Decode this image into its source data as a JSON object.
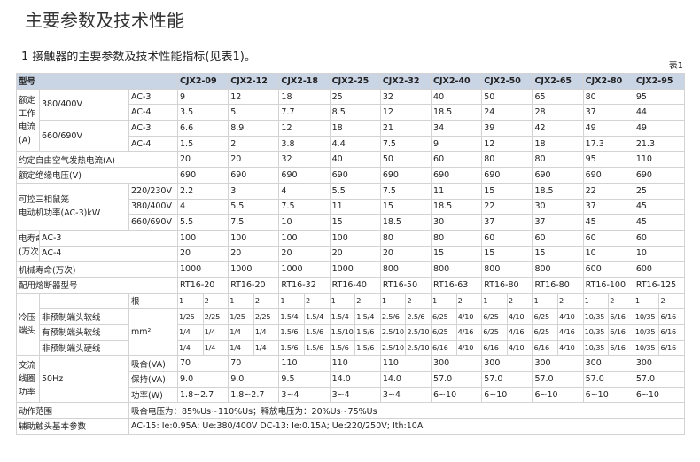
{
  "header": {
    "title": "主要参数及技术性能",
    "subtitle": "1 接触器的主要参数及技术性能指标(见表1)。"
  },
  "table": {
    "caption": "表1",
    "model_label": "型号",
    "models": [
      "CJX2-09",
      "CJX2-12",
      "CJX2-18",
      "CJX2-25",
      "CJX2-32",
      "CJX2-40",
      "CJX2-50",
      "CJX2-65",
      "CJX2-80",
      "CJX2-95"
    ],
    "rated_current": {
      "label_lines": [
        "额定",
        "工作",
        "电流",
        "(A)"
      ],
      "groups": [
        {
          "voltage": "380/400V",
          "rows": [
            {
              "category": "AC-3",
              "values": [
                "9",
                "12",
                "18",
                "25",
                "32",
                "40",
                "50",
                "65",
                "80",
                "95"
              ]
            },
            {
              "category": "AC-4",
              "values": [
                "3.5",
                "5",
                "7.7",
                "8.5",
                "12",
                "18.5",
                "24",
                "28",
                "37",
                "44"
              ]
            }
          ]
        },
        {
          "voltage": "660/690V",
          "rows": [
            {
              "category": "AC-3",
              "values": [
                "6.6",
                "8.9",
                "12",
                "18",
                "21",
                "34",
                "39",
                "42",
                "49",
                "49"
              ]
            },
            {
              "category": "AC-4",
              "values": [
                "1.5",
                "2",
                "3.8",
                "4.4",
                "7.5",
                "9",
                "12",
                "18",
                "17.3",
                "21.3"
              ]
            }
          ]
        }
      ]
    },
    "thermal_current": {
      "label": "约定自由空气发热电流(A)",
      "values": [
        "20",
        "20",
        "32",
        "40",
        "50",
        "60",
        "80",
        "80",
        "95",
        "110"
      ]
    },
    "insulation_voltage": {
      "label": "额定绝缘电压(V)",
      "values": [
        "690",
        "690",
        "690",
        "690",
        "690",
        "690",
        "690",
        "690",
        "690",
        "690"
      ]
    },
    "motor_power": {
      "label_lines": [
        "可控三相鼠笼",
        "电动机功率(AC-3)kW"
      ],
      "rows": [
        {
          "voltage": "220/230V",
          "values": [
            "2.2",
            "3",
            "4",
            "5.5",
            "7.5",
            "11",
            "15",
            "18.5",
            "22",
            "25"
          ]
        },
        {
          "voltage": "380/400V",
          "values": [
            "4",
            "5.5",
            "7.5",
            "11",
            "15",
            "18.5",
            "22",
            "30",
            "37",
            "45"
          ]
        },
        {
          "voltage": "660/690V",
          "values": [
            "5.5",
            "7.5",
            "10",
            "15",
            "18.5",
            "30",
            "37",
            "37",
            "45",
            "45"
          ]
        }
      ]
    },
    "electrical_life": {
      "label_lines": [
        "电寿命",
        "(万次)"
      ],
      "rows": [
        {
          "category": "AC-3",
          "values": [
            "100",
            "100",
            "100",
            "100",
            "80",
            "80",
            "60",
            "60",
            "60",
            "60"
          ]
        },
        {
          "category": "AC-4",
          "values": [
            "20",
            "20",
            "20",
            "20",
            "20",
            "15",
            "15",
            "15",
            "10",
            "10"
          ]
        }
      ]
    },
    "mechanical_life": {
      "label": "机械寿命(万次)",
      "values": [
        "1000",
        "1000",
        "1000",
        "1000",
        "800",
        "800",
        "800",
        "800",
        "600",
        "600"
      ]
    },
    "fuse": {
      "label": "配用熔断器型号",
      "values": [
        "RT16-20",
        "RT16-20",
        "RT16-32",
        "RT16-40",
        "RT16-50",
        "RT16-63",
        "RT16-80",
        "RT16-80",
        "RT16-100",
        "RT16-125"
      ]
    },
    "terminals": {
      "label_lines": [
        "冷压",
        "端头"
      ],
      "count_label": "根",
      "count_values": [
        "1",
        "2"
      ],
      "unit": "mm²",
      "rows": [
        {
          "wire": "非预制端头软线",
          "values": [
            [
              "1/25",
              "2/25"
            ],
            [
              "1/25",
              "2/25"
            ],
            [
              "1.5/4",
              "1.5/4"
            ],
            [
              "1.5/4",
              "1.5/4"
            ],
            [
              "2.5/6",
              "2.5/6"
            ],
            [
              "6/25",
              "4/10"
            ],
            [
              "6/25",
              "4/10"
            ],
            [
              "6/25",
              "4/10"
            ],
            [
              "10/35",
              "6/16"
            ],
            [
              "10/35",
              "6/16"
            ]
          ]
        },
        {
          "wire": "有预制端头软线",
          "values": [
            [
              "1/4",
              "1/4"
            ],
            [
              "1/4",
              "1/4"
            ],
            [
              "1.5/6",
              "1.5/6"
            ],
            [
              "1.5/10",
              "1.5/6"
            ],
            [
              "2.5/10",
              "2.5/10"
            ],
            [
              "6/25",
              "4/16"
            ],
            [
              "6/25",
              "4/16"
            ],
            [
              "6/25",
              "4/16"
            ],
            [
              "10/35",
              "6/16"
            ],
            [
              "10/35",
              "6/16"
            ]
          ]
        },
        {
          "wire": "非预制端头硬线",
          "values": [
            [
              "1/4",
              "1/4"
            ],
            [
              "1/4",
              "1/4"
            ],
            [
              "1.5/6",
              "1.5/6"
            ],
            [
              "1.5/6",
              "1.5/6"
            ],
            [
              "2.5/10",
              "2.5/10"
            ],
            [
              "6/16",
              "4/10"
            ],
            [
              "6/16",
              "4/10"
            ],
            [
              "6/16",
              "4/10"
            ],
            [
              "10/35",
              "6/16"
            ],
            [
              "10/35",
              "6/16"
            ]
          ]
        }
      ]
    },
    "coil": {
      "label_lines": [
        "交流",
        "线圈",
        "功率"
      ],
      "frequency": "50Hz",
      "rows": [
        {
          "item": "吸合(VA)",
          "values": [
            "70",
            "70",
            "110",
            "110",
            "110",
            "300",
            "300",
            "300",
            "300",
            "300"
          ]
        },
        {
          "item": "保持(VA)",
          "values": [
            "9.0",
            "9.0",
            "9.5",
            "14.0",
            "14.0",
            "57.0",
            "57.0",
            "57.0",
            "57.0",
            "57.0"
          ]
        },
        {
          "item": "功率(W)",
          "values": [
            "1.8~2.7",
            "1.8~2.7",
            "3~4",
            "3~4",
            "3~4",
            "6~10",
            "6~10",
            "6~10",
            "6~10",
            "6~10"
          ]
        }
      ]
    },
    "operating_range": {
      "label": "动作范围",
      "value": "吸合电压为：85%Us~110%Us；释放电压为：20%Us~75%Us"
    },
    "auxiliary": {
      "label": "辅助触头基本参数",
      "value": "AC-15: Ie:0.95A; Ue:380/400V  DC-13: Ie:0.15A; Ue:220/250V; Ith:10A"
    }
  }
}
